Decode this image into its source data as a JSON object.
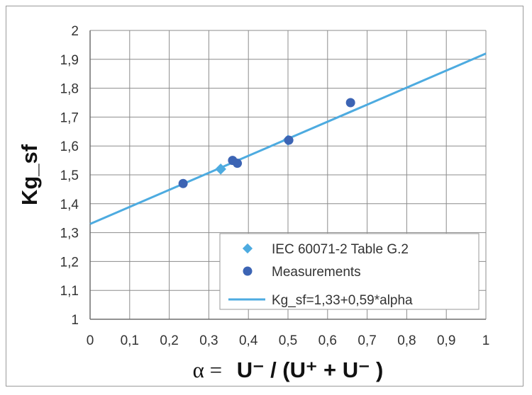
{
  "chart_data": {
    "type": "scatter",
    "ylabel": "Kg_sf",
    "xlabel_parts": [
      "α =",
      "U⁻ / (U⁺ + U⁻ )"
    ],
    "xlim": [
      0,
      1
    ],
    "ylim": [
      1,
      2
    ],
    "x_ticks": [
      "0",
      "0,1",
      "0,2",
      "0,3",
      "0,4",
      "0,5",
      "0,6",
      "0,7",
      "0,8",
      "0,9",
      "1"
    ],
    "y_ticks": [
      "1",
      "1,1",
      "1,2",
      "1,3",
      "1,4",
      "1,5",
      "1,6",
      "1,7",
      "1,8",
      "1,9",
      "2"
    ],
    "grid": true,
    "legend_position": "bottom-right",
    "series": [
      {
        "name": "IEC 60071-2 Table G.2",
        "marker": "diamond",
        "color": "#4dabe0",
        "points": [
          {
            "x": 0.33,
            "y": 1.52
          },
          {
            "x": 0.5,
            "y": 1.62
          }
        ]
      },
      {
        "name": "Measurements",
        "marker": "circle",
        "color": "#3c64b4",
        "points": [
          {
            "x": 0.235,
            "y": 1.47
          },
          {
            "x": 0.36,
            "y": 1.55
          },
          {
            "x": 0.372,
            "y": 1.54
          },
          {
            "x": 0.502,
            "y": 1.62
          },
          {
            "x": 0.658,
            "y": 1.75
          }
        ]
      },
      {
        "name": "Kg_sf=1,33+0,59*alpha",
        "type": "line",
        "color": "#4dabe0",
        "intercept": 1.33,
        "slope": 0.59
      }
    ]
  }
}
